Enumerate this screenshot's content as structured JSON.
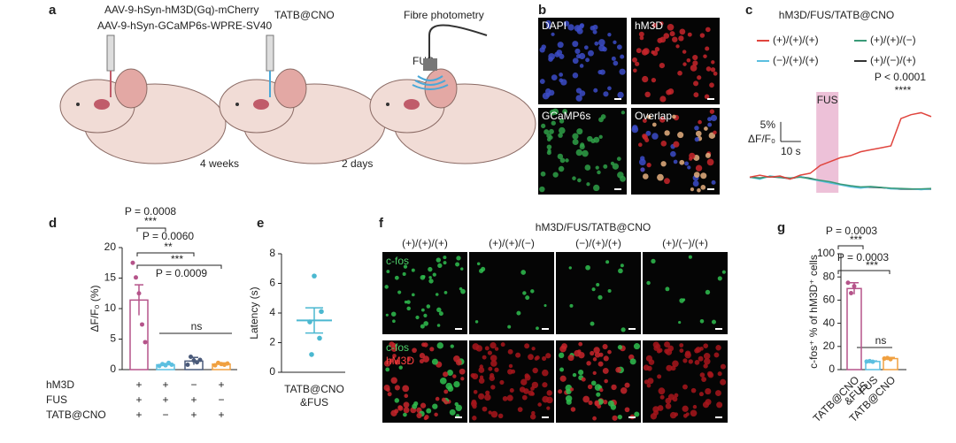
{
  "panel_labels": [
    "a",
    "b",
    "c",
    "d",
    "e",
    "f",
    "g"
  ],
  "panel_a": {
    "virus_lines": [
      "AAV-9-hSyn-hM3D(Gq)-mCherry",
      "AAV-9-hSyn-GCaMP6s-WPRE-SV40"
    ],
    "step2": "TATB@CNO",
    "step3": "Fibre photometry",
    "fus": "FUS",
    "interval1": "4 weeks",
    "interval2": "2 days"
  },
  "panel_b": {
    "images": [
      "DAPI",
      "hM3D",
      "GCaMP6s",
      "Overlap"
    ]
  },
  "panel_f": {
    "title": "hM3D/FUS/TATB@CNO",
    "columns": [
      "(+)/(+)/(+)",
      "(+)/(+)/(−)",
      "(−)/(+)/(+)",
      "(+)/(−)/(+)"
    ],
    "row1_label": "c-fos",
    "row2_labels": [
      "c-fos",
      "hM3D"
    ]
  },
  "chart_data": [
    {
      "type": "line",
      "title": "hM3D/FUS/TATB@CNO",
      "ylabel": "ΔF/F₀",
      "x": [
        0,
        5,
        10,
        15,
        20,
        25,
        30,
        35,
        40,
        45,
        50,
        55,
        60,
        65,
        70,
        75,
        80,
        85,
        90
      ],
      "series": [
        {
          "name": "(+)/(+)/(+)",
          "color": "#e0453e",
          "values": [
            0,
            0.5,
            0,
            0.3,
            -0.5,
            0.5,
            1,
            3,
            4,
            5,
            5.5,
            6.5,
            7,
            7.5,
            8,
            15,
            16,
            16.5,
            15.5
          ]
        },
        {
          "name": "(+)/(+)/(−)",
          "color": "#3a9a78",
          "values": [
            0,
            -0.3,
            0.2,
            0,
            -0.2,
            0,
            -0.4,
            -0.8,
            -1.2,
            -1.8,
            -2.2,
            -2.5,
            -2.4,
            -2.6,
            -2.8,
            -2.9,
            -3,
            -3,
            -2.9
          ]
        },
        {
          "name": "(−)/(+)/(+)",
          "color": "#5bbfe0",
          "values": [
            0,
            -0.5,
            0.3,
            0,
            -0.3,
            0.2,
            -0.5,
            -1,
            -1.5,
            -2,
            -2.5,
            -2.8,
            -2.5,
            -2.6,
            -3,
            -3,
            -3,
            -3.2,
            -3
          ]
        },
        {
          "name": "(+)/(−)/(+)",
          "color": "#333333",
          "values": [
            0,
            -0.2,
            0.1,
            -0.1,
            -0.4,
            0.1,
            -0.3,
            -0.9,
            -1.3,
            -1.9,
            -2.3,
            -2.6,
            -2.6,
            -2.7,
            -2.9,
            -3.1,
            -3.1,
            -3.1,
            -3.1
          ]
        }
      ],
      "xlim": [
        0,
        90
      ],
      "ylim": [
        -4,
        20
      ],
      "window": {
        "label": "FUS",
        "start": 33,
        "end": 44
      },
      "annotation": "P < 0.0001",
      "stars": "****",
      "scale_x": {
        "value": 10,
        "label": "10 s"
      },
      "scale_y": {
        "value": 5,
        "label": "5%"
      }
    },
    {
      "type": "bar",
      "ylabel": "ΔF/F₀ (%)",
      "values": [
        11.4,
        0.8,
        1.4,
        0.9
      ],
      "errors": [
        2.5,
        0.2,
        0.6,
        0.2
      ],
      "points": [
        [
          17.5,
          15.1,
          12.5,
          7.4,
          4.5
        ],
        [
          0.6,
          0.9,
          0.7,
          1.1,
          0.8
        ],
        [
          0.8,
          2.1,
          1.5,
          1.2,
          1.6
        ],
        [
          0.7,
          1.1,
          0.9,
          0.8,
          1.0
        ]
      ],
      "colors": [
        "#b5548a",
        "#5bbfe0",
        "#4a5a7a",
        "#f0a040"
      ],
      "ylim": [
        0,
        20
      ],
      "yticks": [
        0,
        5,
        10,
        15,
        20
      ],
      "annotations": [
        "P = 0.0008",
        "***",
        "P = 0.0060",
        "**",
        "***",
        "P = 0.0009",
        "ns"
      ],
      "conditions": [
        {
          "name": "hM3D",
          "values": [
            "+",
            "+",
            "−",
            "+"
          ]
        },
        {
          "name": "FUS",
          "values": [
            "+",
            "+",
            "+",
            "−"
          ]
        },
        {
          "name": "TATB@CNO",
          "values": [
            "+",
            "−",
            "+",
            "+"
          ]
        }
      ]
    },
    {
      "type": "dot",
      "ylabel": "Latency (s)",
      "categories": [
        [
          "TATB@CNO",
          "&FUS"
        ]
      ],
      "values": [
        3.5
      ],
      "errors": [
        0.85
      ],
      "points": [
        [
          6.5,
          4.1,
          3.4,
          2.3,
          1.2
        ]
      ],
      "colors": [
        "#4bb8d0"
      ],
      "ylim": [
        0,
        8
      ],
      "yticks": [
        0,
        2,
        4,
        6,
        8
      ]
    },
    {
      "type": "bar",
      "ylabel": "c-fos⁺ % of hM3D⁺ cells",
      "categories": [
        [
          "TATB@CNO",
          "&FUS"
        ],
        [
          "FUS"
        ],
        [
          "TATB@CNO"
        ]
      ],
      "values": [
        70,
        7,
        9.5
      ],
      "errors": [
        5,
        0.5,
        1
      ],
      "points": [
        [
          75,
          66,
          72
        ],
        [
          7,
          7.3,
          6.8
        ],
        [
          9.5,
          10,
          9
        ]
      ],
      "colors": [
        "#b5548a",
        "#5bbfe0",
        "#f0a040"
      ],
      "ylim": [
        0,
        100
      ],
      "yticks": [
        0,
        20,
        40,
        60,
        80,
        100
      ],
      "annotations": [
        "P = 0.0003",
        "***",
        "P = 0.0003",
        "***",
        "ns"
      ]
    }
  ]
}
